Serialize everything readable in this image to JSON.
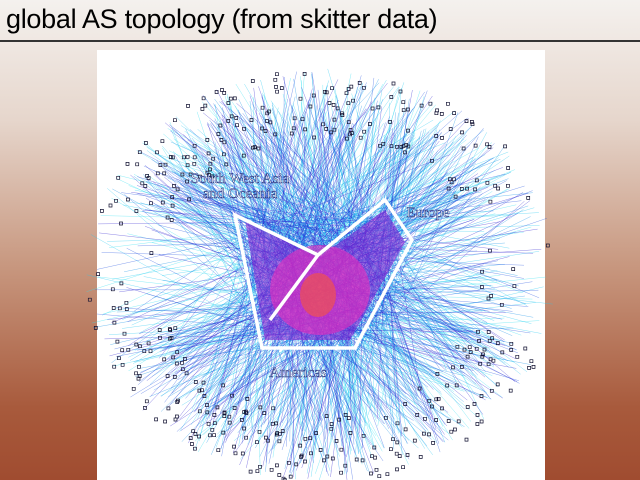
{
  "slide": {
    "title": "global AS topology (from skitter data)",
    "regions": [
      {
        "lines": [
          "South West Asia",
          "and Oceania"
        ]
      },
      {
        "lines": [
          "Europe"
        ]
      },
      {
        "lines": [
          "Americas"
        ]
      }
    ]
  }
}
